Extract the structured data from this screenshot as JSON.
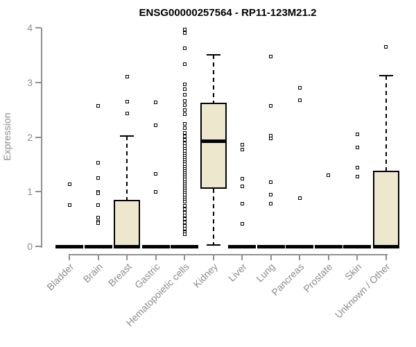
{
  "chart_data": {
    "type": "boxplot",
    "title": "ENSG00000257564 - RP11-123M21.2",
    "ylabel": "Expression",
    "xlabel": "",
    "ylim": [
      0,
      4
    ],
    "yticks": [
      0,
      1,
      2,
      3,
      4
    ],
    "grid": false,
    "legend": false,
    "categories": [
      "Bladder",
      "Brain",
      "Breast",
      "Gastric",
      "Hematopoietic cells",
      "Kidney",
      "Liver",
      "Lung",
      "Pancreas",
      "Prostate",
      "Skin",
      "Unknown / Other"
    ],
    "boxes": [
      {
        "category": "Bladder",
        "q1": 0,
        "median": 0,
        "q3": 0,
        "whisker_low": 0,
        "whisker_high": 0,
        "outliers": [
          1.14,
          0.76
        ]
      },
      {
        "category": "Brain",
        "q1": 0,
        "median": 0,
        "q3": 0,
        "whisker_low": 0,
        "whisker_high": 0,
        "outliers": [
          2.57,
          1.53,
          1.25,
          1.0,
          0.97,
          0.75,
          0.53,
          0.45,
          0.42
        ]
      },
      {
        "category": "Breast",
        "q1": 0,
        "median": 0,
        "q3": 0.85,
        "whisker_low": 0,
        "whisker_high": 2.02,
        "outliers": [
          3.1,
          2.65,
          2.43
        ]
      },
      {
        "category": "Gastric",
        "q1": 0,
        "median": 0,
        "q3": 0,
        "whisker_low": 0,
        "whisker_high": 0,
        "outliers": [
          2.64,
          2.22,
          1.33,
          1.0
        ]
      },
      {
        "category": "Hematopoietic cells",
        "q1": 0,
        "median": 0,
        "q3": 0,
        "whisker_low": 0,
        "whisker_high": 0,
        "outliers": [
          3.97,
          3.9,
          3.62,
          3.33,
          2.97,
          2.88,
          2.78,
          2.66,
          2.58,
          2.5,
          2.42,
          2.24,
          2.16,
          2.08,
          2.01,
          1.95,
          1.89,
          1.84,
          1.79,
          1.74,
          1.7,
          1.66,
          1.62,
          1.58,
          1.54,
          1.5,
          1.46,
          1.42,
          1.38,
          1.34,
          1.3,
          1.26,
          1.22,
          1.18,
          1.14,
          1.1,
          1.06,
          1.02,
          0.98,
          0.94,
          0.9,
          0.86,
          0.82,
          0.74,
          0.68,
          0.62,
          0.56,
          0.5,
          0.44,
          0.38,
          0.32,
          0.26,
          0.22
        ]
      },
      {
        "category": "Kidney",
        "q1": 1.05,
        "median": 1.93,
        "q3": 2.63,
        "whisker_low": 0.02,
        "whisker_high": 3.51,
        "outliers": []
      },
      {
        "category": "Liver",
        "q1": 0,
        "median": 0,
        "q3": 0,
        "whisker_low": 0,
        "whisker_high": 0,
        "outliers": [
          1.86,
          1.77,
          1.24,
          1.1,
          0.78,
          0.41
        ]
      },
      {
        "category": "Lung",
        "q1": 0,
        "median": 0,
        "q3": 0,
        "whisker_low": 0,
        "whisker_high": 0,
        "outliers": [
          3.47,
          2.57,
          2.02,
          1.97,
          1.18,
          0.94,
          0.78
        ]
      },
      {
        "category": "Pancreas",
        "q1": 0,
        "median": 0,
        "q3": 0,
        "whisker_low": 0,
        "whisker_high": 0,
        "outliers": [
          2.9,
          2.67,
          0.88
        ]
      },
      {
        "category": "Prostate",
        "q1": 0,
        "median": 0,
        "q3": 0,
        "whisker_low": 0,
        "whisker_high": 0,
        "outliers": [
          1.3
        ]
      },
      {
        "category": "Skin",
        "q1": 0,
        "median": 0,
        "q3": 0,
        "whisker_low": 0,
        "whisker_high": 0,
        "outliers": [
          2.05,
          1.81,
          1.44,
          1.28
        ]
      },
      {
        "category": "Unknown / Other",
        "q1": 0,
        "median": 0,
        "q3": 1.38,
        "whisker_low": 0,
        "whisker_high": 3.12,
        "outliers": [
          3.65
        ]
      }
    ],
    "colors": {
      "background": "#ffffff",
      "box_fill": "#ece7cd",
      "box_border": "#000000",
      "median": "#000000",
      "whisker": "#000000",
      "outlier_border": "#000000",
      "outlier_fill": "#ffffff",
      "axis": "#8f8f8f",
      "tick_label": "#8c8c8c",
      "title": "#000000"
    }
  }
}
